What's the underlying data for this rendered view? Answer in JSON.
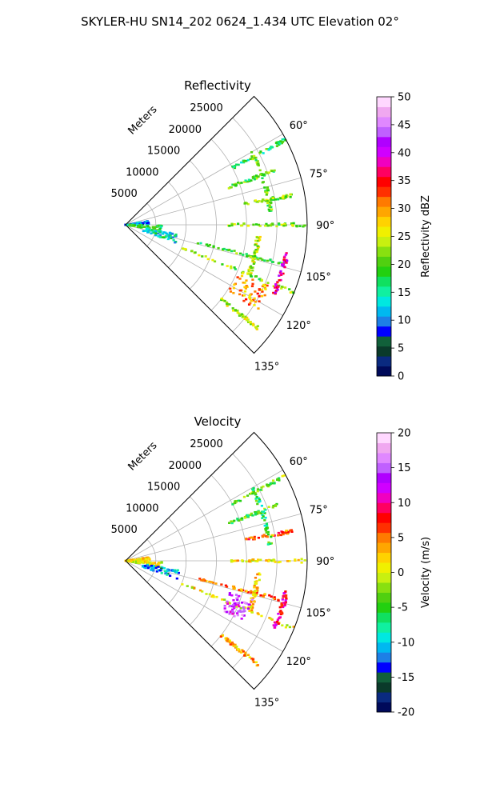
{
  "figure_title": "SKYLER-HU  SN14_202  0624_1.434 UTC Elevation 02°",
  "chart_data": [
    {
      "type": "polar-sector",
      "title": "Reflectivity",
      "radial_label": "Meters",
      "radial_ticks": [
        5000,
        10000,
        15000,
        20000,
        25000
      ],
      "radial_tick_labels": [
        "5000",
        "10000",
        "15000",
        "20000",
        "25000"
      ],
      "angle_ticks": [
        60,
        75,
        90,
        105,
        120,
        135
      ],
      "angle_tick_labels": [
        "60°",
        "75°",
        "90°",
        "105°",
        "120°",
        "135°"
      ],
      "angle_range": [
        45,
        135
      ],
      "r_max": 30000,
      "grid": true,
      "colorbar": {
        "label": "Reflectivity dBZ",
        "min": 0,
        "max": 50,
        "ticks": [
          0,
          5,
          10,
          15,
          20,
          25,
          30,
          35,
          40,
          45,
          50
        ],
        "tick_labels": [
          "0",
          "5",
          "10",
          "15",
          "20",
          "25",
          "30",
          "35",
          "40",
          "45",
          "50"
        ],
        "colors": [
          "#000a5a",
          "#0a2a80",
          "#0a3a2a",
          "#11603a",
          "#0000ff",
          "#1d7fe6",
          "#00b8f0",
          "#00e8e0",
          "#10f0a0",
          "#10e060",
          "#22d010",
          "#50d010",
          "#88e010",
          "#c8f010",
          "#f0f000",
          "#ffd200",
          "#ffa600",
          "#ff7a00",
          "#ff3000",
          "#ff0000",
          "#ff0060",
          "#f000c0",
          "#d000ff",
          "#b000ff",
          "#c060ff",
          "#e088ff",
          "#f0a8f0",
          "#ffd8ff"
        ]
      },
      "features": [
        {
          "kind": "cluster",
          "az": 85,
          "r0": 0,
          "r1": 4000,
          "value": 10
        },
        {
          "kind": "cluster",
          "az": 96,
          "r0": 0,
          "r1": 6000,
          "value": 18
        },
        {
          "kind": "line",
          "az": 90,
          "r0": 17000,
          "r1": 30000,
          "value": 22
        },
        {
          "kind": "line",
          "az": 104,
          "r0": 12000,
          "r1": 27000,
          "value": 20
        },
        {
          "kind": "line",
          "az": 112,
          "r0": 10000,
          "r1": 30000,
          "value": 22
        },
        {
          "kind": "line",
          "az": 128,
          "r0": 20000,
          "r1": 28000,
          "value": 24
        },
        {
          "kind": "line",
          "az": 62,
          "r0": 20000,
          "r1": 30000,
          "value": 18
        },
        {
          "kind": "line",
          "az": 70,
          "r0": 18000,
          "r1": 27000,
          "value": 20
        },
        {
          "kind": "line",
          "az": 80,
          "r0": 20000,
          "r1": 28000,
          "value": 22
        },
        {
          "kind": "arc",
          "r": 22000,
          "az0": 95,
          "az1": 112,
          "value": 24
        },
        {
          "kind": "arc",
          "r": 27000,
          "az0": 100,
          "az1": 115,
          "value": 38
        },
        {
          "kind": "arc",
          "r": 24000,
          "az0": 60,
          "az1": 85,
          "value": 20
        },
        {
          "kind": "cluster",
          "az": 118,
          "r0": 20000,
          "r1": 26000,
          "value": 30
        },
        {
          "kind": "cluster",
          "az": 105,
          "r0": 3000,
          "r1": 9000,
          "value": 14
        }
      ]
    },
    {
      "type": "polar-sector",
      "title": "Velocity",
      "radial_label": "Meters",
      "radial_ticks": [
        5000,
        10000,
        15000,
        20000,
        25000
      ],
      "radial_tick_labels": [
        "5000",
        "10000",
        "15000",
        "20000",
        "25000"
      ],
      "angle_ticks": [
        60,
        75,
        90,
        105,
        120,
        135
      ],
      "angle_tick_labels": [
        "60°",
        "75°",
        "90°",
        "105°",
        "120°",
        "135°"
      ],
      "angle_range": [
        45,
        135
      ],
      "r_max": 30000,
      "grid": true,
      "colorbar": {
        "label": "Velocity (m/s)",
        "min": -20,
        "max": 20,
        "ticks": [
          -20,
          -15,
          -10,
          -5,
          0,
          5,
          10,
          15,
          20
        ],
        "tick_labels": [
          "-20",
          "-15",
          "-10",
          "-5",
          "0",
          "5",
          "10",
          "15",
          "20"
        ],
        "colors": [
          "#000a5a",
          "#0a2a80",
          "#0a3a2a",
          "#11603a",
          "#0000ff",
          "#1d7fe6",
          "#00b8f0",
          "#00e8e0",
          "#10f0a0",
          "#10e060",
          "#22d010",
          "#50d010",
          "#88e010",
          "#c8f010",
          "#f0f000",
          "#ffd200",
          "#ffa600",
          "#ff7a00",
          "#ff3000",
          "#ff0000",
          "#ff0060",
          "#f000c0",
          "#d000ff",
          "#b000ff",
          "#c060ff",
          "#e088ff",
          "#f0a8f0",
          "#ffd8ff"
        ]
      },
      "features": [
        {
          "kind": "cluster",
          "az": 85,
          "r0": 0,
          "r1": 4000,
          "value": 2
        },
        {
          "kind": "cluster",
          "az": 96,
          "r0": 0,
          "r1": 6000,
          "value": 0
        },
        {
          "kind": "line",
          "az": 90,
          "r0": 17000,
          "r1": 30000,
          "value": 2
        },
        {
          "kind": "line",
          "az": 104,
          "r0": 12000,
          "r1": 27000,
          "value": 5
        },
        {
          "kind": "line",
          "az": 112,
          "r0": 10000,
          "r1": 30000,
          "value": 1
        },
        {
          "kind": "line",
          "az": 128,
          "r0": 20000,
          "r1": 28000,
          "value": 3
        },
        {
          "kind": "line",
          "az": 62,
          "r0": 20000,
          "r1": 30000,
          "value": -3
        },
        {
          "kind": "line",
          "az": 70,
          "r0": 18000,
          "r1": 27000,
          "value": -4
        },
        {
          "kind": "line",
          "az": 80,
          "r0": 20000,
          "r1": 28000,
          "value": 6
        },
        {
          "kind": "arc",
          "r": 22000,
          "az0": 95,
          "az1": 112,
          "value": 2
        },
        {
          "kind": "arc",
          "r": 27000,
          "az0": 100,
          "az1": 115,
          "value": 9
        },
        {
          "kind": "arc",
          "r": 24000,
          "az0": 60,
          "az1": 85,
          "value": -6
        },
        {
          "kind": "cluster",
          "az": 112,
          "r0": 18000,
          "r1": 22000,
          "value": 14
        },
        {
          "kind": "cluster",
          "az": 105,
          "r0": 3000,
          "r1": 9000,
          "value": -11
        }
      ]
    }
  ]
}
